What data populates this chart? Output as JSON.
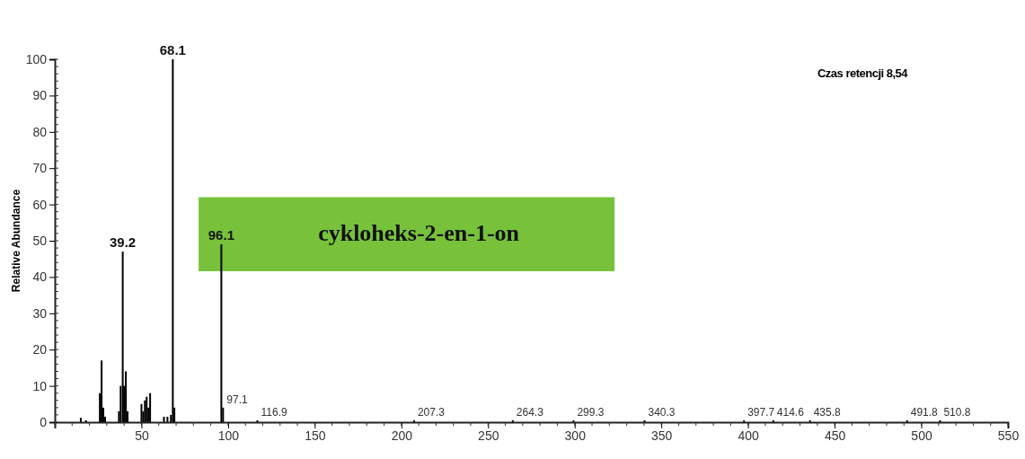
{
  "chart_data": {
    "type": "bar",
    "title": "cykloheks-2-en-1-on",
    "subtitle": "Czas retencji 8,54",
    "ylabel": "Relative Abundance",
    "x": [
      15,
      18,
      26,
      27,
      28,
      29,
      37,
      38,
      39.2,
      40,
      41,
      42,
      50,
      51,
      52,
      53,
      54,
      55,
      63,
      65,
      67,
      68.1,
      69,
      96.1,
      97.1,
      116.9,
      207.3,
      264.3,
      299.3,
      340.3,
      397.7,
      414.6,
      435.8,
      491.8,
      510.8
    ],
    "series": [
      {
        "color": "#000000",
        "values": [
          1.2,
          0.5,
          8,
          17,
          4,
          1.5,
          3,
          10,
          47,
          10,
          14,
          3,
          5,
          3,
          6,
          7,
          4,
          8,
          1.5,
          1.5,
          2,
          100,
          4,
          49,
          4,
          0.5,
          0.5,
          0.5,
          0.5,
          0.5,
          0.5,
          0.5,
          0.5,
          0.5,
          0.5
        ]
      }
    ],
    "xlim": [
      0,
      550
    ],
    "xticks": [
      50,
      100,
      150,
      200,
      250,
      300,
      350,
      400,
      450,
      500,
      550
    ],
    "ylim": [
      0,
      100
    ],
    "yticks": [
      0,
      10,
      20,
      30,
      40,
      50,
      60,
      70,
      80,
      90,
      100
    ],
    "annotations": [
      {
        "text": "68.1",
        "x": 68.1,
        "y": 100
      },
      {
        "text": "39.2",
        "x": 39.2,
        "y": 47
      },
      {
        "text": "96.1",
        "x": 96.1,
        "y": 49
      },
      {
        "text": "97.1",
        "x": 97.1,
        "y": 4
      },
      {
        "text": "116.9",
        "x": 116.9,
        "y": 0.5
      },
      {
        "text": "207.3",
        "x": 207.3,
        "y": 0.5
      },
      {
        "text": "264.3",
        "x": 264.3,
        "y": 0.5
      },
      {
        "text": "299.3",
        "x": 299.3,
        "y": 0.5
      },
      {
        "text": "340.3",
        "x": 340.3,
        "y": 0.5
      },
      {
        "text": "397.7",
        "x": 397.7,
        "y": 0.5
      },
      {
        "text": "414.6",
        "x": 414.6,
        "y": 0.5
      },
      {
        "text": "435.8",
        "x": 435.8,
        "y": 0.5
      },
      {
        "text": "491.8",
        "x": 491.8,
        "y": 0.5
      },
      {
        "text": "510.8",
        "x": 510.8,
        "y": 0.5
      }
    ]
  }
}
